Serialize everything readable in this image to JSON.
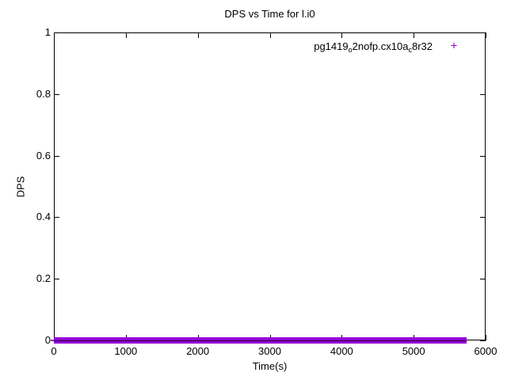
{
  "chart": {
    "title": "DPS vs Time for l.i0",
    "xlabel": "Time(s)",
    "ylabel": "DPS",
    "legend": {
      "label_plain": "pg1419o2nofp.cx10ac8r32",
      "parts": [
        {
          "text": "pg1419",
          "style": "normal"
        },
        {
          "text": "o",
          "style": "sub"
        },
        {
          "text": "2nofp.cx10a",
          "style": "normal"
        },
        {
          "text": "c",
          "style": "sub"
        },
        {
          "text": "8r32",
          "style": "normal"
        }
      ],
      "marker": "+",
      "marker_color": "#9400d3"
    }
  },
  "chart_data": {
    "type": "scatter",
    "title": "DPS vs Time for l.i0",
    "xlabel": "Time(s)",
    "ylabel": "DPS",
    "xlim": [
      0,
      6000
    ],
    "ylim": [
      0,
      1
    ],
    "x_ticks": [
      0,
      1000,
      2000,
      3000,
      4000,
      5000,
      6000
    ],
    "x_tick_labels": [
      "0",
      "1000",
      "2000",
      "3000",
      "4000",
      "5000",
      "6000"
    ],
    "y_ticks": [
      0,
      0.2,
      0.4,
      0.6,
      0.8,
      1
    ],
    "y_tick_labels": [
      "0",
      "0.2",
      "0.4",
      "0.6",
      "0.8",
      "1"
    ],
    "grid": false,
    "tick_style": "inward, mirrored on all four borders",
    "legend_position": "top-right-inside",
    "series": [
      {
        "name": "pg1419o2nofp.cx10ac8r32",
        "marker": "+",
        "color": "#9400d3",
        "x_range": [
          0,
          5700
        ],
        "y_constant": 0,
        "note": "densely sampled points all at DPS=0 forming a solid flat band along the x-axis",
        "points": [
          [
            0,
            0
          ],
          [
            100,
            0
          ],
          [
            200,
            0
          ],
          [
            300,
            0
          ],
          [
            400,
            0
          ],
          [
            500,
            0
          ],
          [
            600,
            0
          ],
          [
            700,
            0
          ],
          [
            800,
            0
          ],
          [
            900,
            0
          ],
          [
            1000,
            0
          ],
          [
            1100,
            0
          ],
          [
            1200,
            0
          ],
          [
            1300,
            0
          ],
          [
            1400,
            0
          ],
          [
            1500,
            0
          ],
          [
            1600,
            0
          ],
          [
            1700,
            0
          ],
          [
            1800,
            0
          ],
          [
            1900,
            0
          ],
          [
            2000,
            0
          ],
          [
            2100,
            0
          ],
          [
            2200,
            0
          ],
          [
            2300,
            0
          ],
          [
            2400,
            0
          ],
          [
            2500,
            0
          ],
          [
            2600,
            0
          ],
          [
            2700,
            0
          ],
          [
            2800,
            0
          ],
          [
            2900,
            0
          ],
          [
            3000,
            0
          ],
          [
            3100,
            0
          ],
          [
            3200,
            0
          ],
          [
            3300,
            0
          ],
          [
            3400,
            0
          ],
          [
            3500,
            0
          ],
          [
            3600,
            0
          ],
          [
            3700,
            0
          ],
          [
            3800,
            0
          ],
          [
            3900,
            0
          ],
          [
            4000,
            0
          ],
          [
            4100,
            0
          ],
          [
            4200,
            0
          ],
          [
            4300,
            0
          ],
          [
            4400,
            0
          ],
          [
            4500,
            0
          ],
          [
            4600,
            0
          ],
          [
            4700,
            0
          ],
          [
            4800,
            0
          ],
          [
            4900,
            0
          ],
          [
            5000,
            0
          ],
          [
            5100,
            0
          ],
          [
            5200,
            0
          ],
          [
            5300,
            0
          ],
          [
            5400,
            0
          ],
          [
            5500,
            0
          ],
          [
            5600,
            0
          ],
          [
            5700,
            0
          ]
        ]
      }
    ]
  }
}
